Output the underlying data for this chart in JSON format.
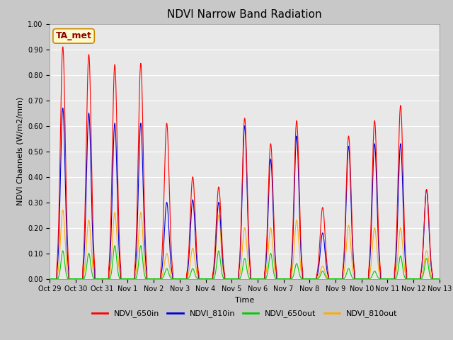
{
  "title": "NDVI Narrow Band Radiation",
  "xlabel": "Time",
  "ylabel": "NDVI Channels (W/m2/mm)",
  "ylim": [
    0.0,
    1.0
  ],
  "yticks": [
    0.0,
    0.1,
    0.2,
    0.3,
    0.4,
    0.5,
    0.6,
    0.7,
    0.8,
    0.9,
    1.0
  ],
  "fig_bg_color": "#c8c8c8",
  "plot_bg_color": "#e8e8e8",
  "annotation_text": "TA_met",
  "annotation_color": "#8b0000",
  "annotation_bg": "#fffacd",
  "annotation_border": "#cc8800",
  "colors": {
    "NDVI_650in": "#ff0000",
    "NDVI_810in": "#0000dd",
    "NDVI_650out": "#00cc00",
    "NDVI_810out": "#ffaa00"
  },
  "tick_labels": [
    "Oct 29",
    "Oct 30",
    "Oct 31",
    "Nov 1",
    "Nov 2",
    "Nov 3",
    "Nov 4",
    "Nov 5",
    "Nov 6",
    "Nov 7",
    "Nov 8",
    "Nov 9",
    "Nov 10",
    "Nov 11",
    "Nov 12",
    "Nov 13"
  ],
  "num_days": 15,
  "samples_per_day": 200,
  "day_peaks_650in": [
    0.91,
    0.88,
    0.84,
    0.845,
    0.61,
    0.4,
    0.36,
    0.63,
    0.53,
    0.62,
    0.28,
    0.56,
    0.62,
    0.68,
    0.35
  ],
  "day_peaks_810in": [
    0.67,
    0.65,
    0.61,
    0.61,
    0.3,
    0.31,
    0.3,
    0.6,
    0.47,
    0.56,
    0.18,
    0.52,
    0.53,
    0.53,
    0.35
  ],
  "day_peaks_650out": [
    0.11,
    0.1,
    0.13,
    0.13,
    0.04,
    0.04,
    0.11,
    0.08,
    0.1,
    0.06,
    0.03,
    0.04,
    0.03,
    0.09,
    0.08
  ],
  "day_peaks_810out": [
    0.27,
    0.23,
    0.26,
    0.26,
    0.1,
    0.12,
    0.25,
    0.2,
    0.2,
    0.23,
    0.05,
    0.21,
    0.2,
    0.2,
    0.11
  ],
  "linewidth": 0.8,
  "title_fontsize": 11,
  "label_fontsize": 8,
  "tick_fontsize": 7,
  "legend_fontsize": 8
}
